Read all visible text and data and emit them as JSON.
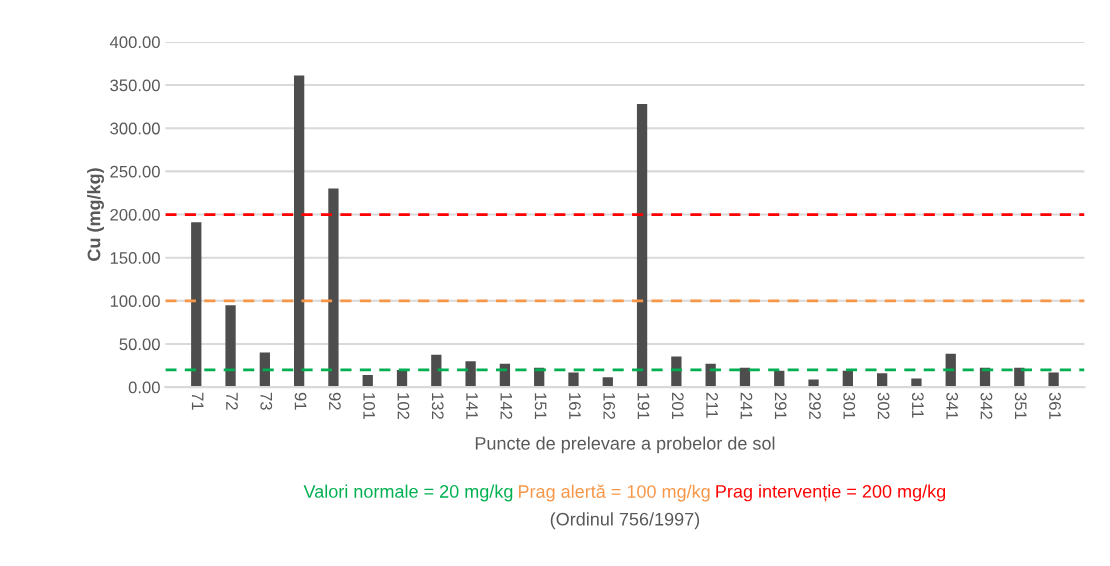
{
  "chart_data": {
    "type": "bar",
    "ylabel": "Cu (mg/kg)",
    "xlabel": "Puncte de prelevare a probelor de sol",
    "categories": [
      "71",
      "72",
      "73",
      "91",
      "92",
      "101",
      "102",
      "132",
      "141",
      "142",
      "151",
      "161",
      "162",
      "191",
      "201",
      "211",
      "241",
      "291",
      "292",
      "301",
      "302",
      "311",
      "341",
      "342",
      "351",
      "361"
    ],
    "values": [
      191,
      95,
      40,
      361,
      230,
      14,
      20,
      37.5,
      30,
      27,
      22.6,
      17,
      11.5,
      328,
      35.6,
      27,
      22.6,
      19,
      9,
      19,
      16,
      10,
      38.7,
      22.6,
      22.6,
      17
    ],
    "color": "#4d4d4d",
    "ylim": [
      0,
      400
    ],
    "yticks": [
      {
        "value": 0,
        "label": "0.00"
      },
      {
        "value": 50,
        "label": "50.00"
      },
      {
        "value": 100,
        "label": "100.00"
      },
      {
        "value": 150,
        "label": "150.00"
      },
      {
        "value": 200,
        "label": "200.00"
      },
      {
        "value": 250,
        "label": "250.00"
      },
      {
        "value": 300,
        "label": "300.00"
      },
      {
        "value": 350,
        "label": "350.00"
      },
      {
        "value": 400,
        "label": "400.00"
      }
    ],
    "grid": "y",
    "ref_lines": [
      {
        "axis": "y",
        "value": 20,
        "label": "Valori normale = 20 mg/kg",
        "color": "#00b050",
        "line_style": "dashed"
      },
      {
        "axis": "y",
        "value": 100,
        "label": "Prag alertă = 100 mg/kg",
        "color": "#f79646",
        "line_style": "dashed"
      },
      {
        "axis": "y",
        "value": 200,
        "label": "Prag intervenție = 200 mg/kg",
        "color": "#ff0000",
        "line_style": "dashed"
      }
    ],
    "annotations": [
      "(Ordinul 756/1997)"
    ]
  }
}
